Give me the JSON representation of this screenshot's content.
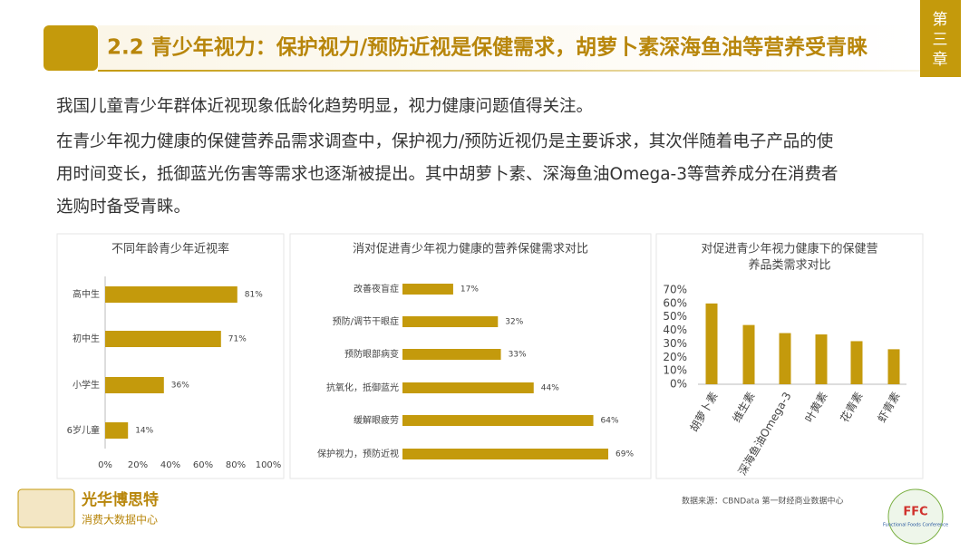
{
  "header": {
    "title": "2.2 青少年视力：保护视力/预防近视是保健需求，胡萝卜素深海鱼油等营养受青睐",
    "chapter": "第三章"
  },
  "intro": [
    "我国儿童青少年群体近视现象低龄化趋势明显，视力健康问题值得关注。",
    "在青少年视力健康的保健营养品需求调查中，保护视力/预防近视仍是主要诉求，其次伴随着电子产品的使",
    "用时间变长，抵御蓝光伤害等需求也逐渐被提出。其中胡萝卜素、深海鱼油Omega-3等营养成分在消费者",
    "选购时备受青睐。"
  ],
  "chart_data": [
    {
      "type": "bar",
      "orientation": "horizontal",
      "title": "不同年龄青少年近视率",
      "color": "#c49a0c",
      "categories": [
        "高中生",
        "初中生",
        "小学生",
        "6岁儿童"
      ],
      "values": [
        81,
        71,
        36,
        14
      ],
      "value_labels": [
        "81%",
        "71%",
        "36%",
        "14%"
      ],
      "xlim": [
        0,
        100
      ],
      "xticks": [
        {
          "value": 0,
          "label": "0%"
        },
        {
          "value": 20,
          "label": "20%"
        },
        {
          "value": 40,
          "label": "40%"
        },
        {
          "value": 60,
          "label": "60%"
        },
        {
          "value": 80,
          "label": "80%"
        },
        {
          "value": 100,
          "label": "100%"
        }
      ]
    },
    {
      "type": "bar",
      "orientation": "horizontal",
      "title": "消对促进青少年视力健康的营养保健需求对比",
      "color": "#c49a0c",
      "categories": [
        "改善夜盲症",
        "预防/调节干眼症",
        "预防眼部病变",
        "抗氧化，抵御蓝光",
        "缓解眼疲劳",
        "保护视力，预防近视"
      ],
      "values": [
        17,
        32,
        33,
        44,
        64,
        69
      ],
      "value_labels": [
        "17%",
        "32%",
        "33%",
        "44%",
        "64%",
        "69%"
      ]
    },
    {
      "type": "bar",
      "orientation": "vertical",
      "title": [
        "对促进青少年视力健康下的保健营",
        "养品类需求对比"
      ],
      "color": "#c49a0c",
      "categories": [
        "胡萝卜素",
        "维生素",
        "深海鱼油Omega-3",
        "叶黄素",
        "花青素",
        "虾青素"
      ],
      "values": [
        60,
        44,
        38,
        37,
        32,
        26
      ],
      "ylim": [
        0,
        70
      ],
      "yticks": [
        {
          "value": 0,
          "label": "0%"
        },
        {
          "value": 10,
          "label": "10%"
        },
        {
          "value": 20,
          "label": "20%"
        },
        {
          "value": 30,
          "label": "30%"
        },
        {
          "value": 40,
          "label": "40%"
        },
        {
          "value": 50,
          "label": "50%"
        },
        {
          "value": 60,
          "label": "60%"
        },
        {
          "value": 70,
          "label": "70%"
        }
      ]
    }
  ],
  "source": "数据来源：CBNData 第一财经商业数据中心",
  "logo_left": {
    "name": "光华博思特",
    "sub": "消费大数据中心"
  },
  "logo_right": {
    "name": "FFC",
    "sub": "Functional Foods Conference"
  }
}
